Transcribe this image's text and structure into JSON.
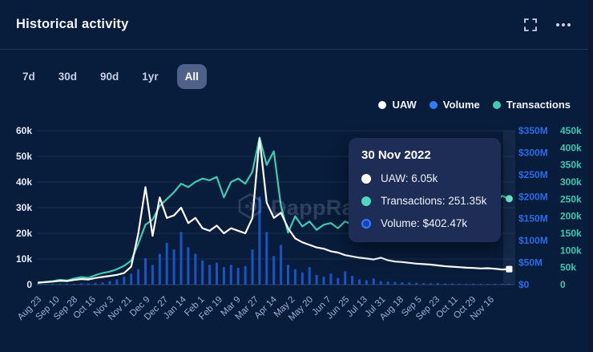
{
  "header": {
    "title": "Historical activity"
  },
  "timeframes": {
    "items": [
      {
        "label": "7d"
      },
      {
        "label": "30d"
      },
      {
        "label": "90d"
      },
      {
        "label": "1yr"
      },
      {
        "label": "All"
      }
    ],
    "selected": "All"
  },
  "legend": {
    "items": [
      {
        "label": "UAW",
        "color": "#ffffff"
      },
      {
        "label": "Volume",
        "color": "#2e7eff"
      },
      {
        "label": "Transactions",
        "color": "#43cbb2"
      }
    ]
  },
  "watermark": {
    "text": "DappRadar"
  },
  "tooltip": {
    "date": "30 Nov 2022",
    "rows": [
      {
        "text": "UAW: 6.05k",
        "color": "#ffffff",
        "style": "solid"
      },
      {
        "text": "Transactions: 251.35k",
        "color": "#4fd8c0",
        "style": "solid"
      },
      {
        "text": "Volume: $402.47k",
        "color": "#2e7eff",
        "style": "ring"
      }
    ]
  },
  "chart_data": {
    "type": "line+bar",
    "title": "Historical activity",
    "x_tick_labels": [
      "Aug 23",
      "Sep 10",
      "Sep 28",
      "Oct 16",
      "Nov 3",
      "Nov 21",
      "Dec 9",
      "Dec 27",
      "Jan 14",
      "Feb 1",
      "Feb 19",
      "Mar 9",
      "Mar 27",
      "Apr 14",
      "May 2",
      "May 20",
      "Jun 7",
      "Jun 25",
      "Jul 13",
      "Jul 31",
      "Aug 18",
      "Sep 5",
      "Sep 23",
      "Oct 11",
      "Oct 29",
      "Nov 16"
    ],
    "x_unit": "weekly samples, Aug 23 2021 through Nov 30 2022",
    "axes": {
      "left": {
        "label": "UAW",
        "ticks": [
          "0",
          "10k",
          "20k",
          "30k",
          "40k",
          "50k",
          "60k"
        ],
        "max": 60,
        "unit": "k users",
        "color": "#e8edf8"
      },
      "right_volume": {
        "label": "Volume",
        "ticks": [
          "$0",
          "$50M",
          "$100M",
          "$150M",
          "$200M",
          "$250M",
          "$300M",
          "$350M"
        ],
        "max": 350,
        "unit": "$M",
        "color": "#2a6ce6"
      },
      "right_transactions": {
        "label": "Transactions",
        "ticks": [
          "0",
          "50k",
          "100k",
          "150k",
          "200k",
          "250k",
          "300k",
          "350k",
          "400k",
          "450k"
        ],
        "max": 450,
        "unit": "k",
        "color": "#3cc8b0"
      }
    },
    "grid": "horizontal only",
    "legend_position": "top-right",
    "series": [
      {
        "name": "UAW",
        "type": "line",
        "axis": "left",
        "color": "#ffffff",
        "values": [
          0.8,
          1.0,
          1.2,
          1.5,
          1.4,
          1.8,
          2.2,
          2.0,
          2.6,
          3.0,
          3.4,
          3.8,
          4.5,
          7.0,
          20,
          38,
          19,
          34,
          26,
          27,
          30,
          24,
          26,
          22,
          21,
          23,
          20,
          22,
          21,
          20,
          26,
          57,
          32,
          26,
          28,
          22,
          18,
          16.5,
          15.5,
          14.5,
          14,
          13,
          12.5,
          11.5,
          11,
          10.5,
          10.2,
          9.8,
          10.5,
          9.5,
          9.0,
          8.8,
          8.5,
          8.2,
          8.0,
          7.8,
          7.5,
          7.2,
          7.0,
          6.8,
          6.6,
          6.5,
          6.3,
          6.4,
          6.2,
          5.9,
          6.05
        ]
      },
      {
        "name": "Transactions",
        "type": "line",
        "axis": "right_transactions",
        "color": "#3fcbb2",
        "values": [
          5,
          8,
          10,
          14,
          12,
          18,
          22,
          20,
          28,
          34,
          38,
          45,
          55,
          70,
          120,
          175,
          190,
          230,
          250,
          270,
          295,
          285,
          300,
          310,
          305,
          315,
          255,
          300,
          310,
          295,
          330,
          430,
          350,
          390,
          230,
          152,
          200,
          170,
          185,
          160,
          175,
          180,
          165,
          185,
          175,
          190,
          180,
          195,
          185,
          200,
          190,
          210,
          200,
          215,
          205,
          220,
          210,
          225,
          215,
          230,
          220,
          240,
          230,
          245,
          235,
          260,
          251.35
        ]
      },
      {
        "name": "Volume",
        "type": "bar",
        "axis": "right_volume",
        "color": "#1c56c8",
        "values": [
          0.5,
          0.8,
          1.0,
          1.5,
          1.2,
          2,
          3,
          2.5,
          4,
          5,
          8,
          12,
          18,
          25,
          35,
          60,
          45,
          70,
          95,
          80,
          120,
          85,
          70,
          55,
          45,
          50,
          40,
          45,
          38,
          42,
          80,
          200,
          120,
          65,
          90,
          45,
          35,
          28,
          40,
          22,
          18,
          25,
          15,
          30,
          20,
          12,
          10,
          14,
          8,
          7,
          6,
          5,
          4.5,
          4,
          3.5,
          3,
          3.5,
          2.5,
          2.8,
          2.2,
          2,
          2.4,
          1.8,
          1.6,
          1.5,
          1.2,
          0.4
        ]
      }
    ],
    "last_point": {
      "date": "30 Nov 2022",
      "uaw": "6.05k",
      "transactions": "251.35k",
      "volume": "$402.47k"
    },
    "end_markers": {
      "uaw": "white square",
      "transactions": "teal dot",
      "colors": {
        "uaw": "#ffffff",
        "transactions": "#74f2d4"
      }
    }
  }
}
